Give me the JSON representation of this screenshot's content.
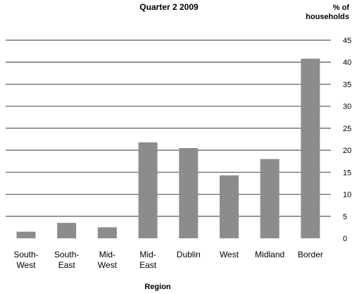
{
  "chart_data": {
    "type": "bar",
    "title": "Quarter 2 2009",
    "ylabel": [
      "% of",
      "households"
    ],
    "xlabel": "Region",
    "categories": [
      [
        "South-",
        "West"
      ],
      [
        "South-",
        "East"
      ],
      [
        "Mid-",
        "West"
      ],
      [
        "Mid-",
        "East"
      ],
      [
        "Dublin"
      ],
      [
        "West"
      ],
      [
        "Midland"
      ],
      [
        "Border"
      ]
    ],
    "values": [
      1.5,
      3.5,
      2.5,
      21.8,
      20.5,
      14.3,
      18.0,
      40.8
    ],
    "ylim": [
      0,
      45
    ],
    "yticks": [
      0,
      5,
      10,
      15,
      20,
      25,
      30,
      35,
      40,
      45
    ],
    "grid": true,
    "bar_color": "#8c8c8c",
    "grid_color": "#5a5a5a"
  }
}
